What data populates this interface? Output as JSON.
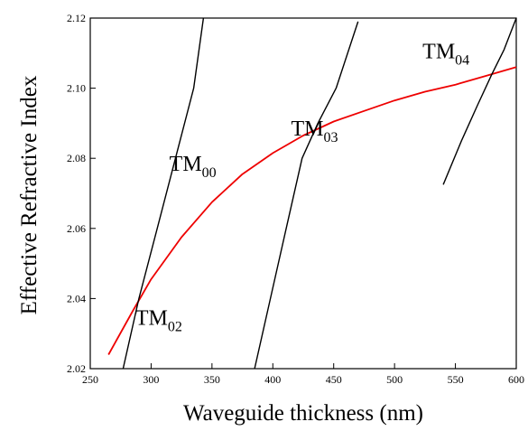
{
  "chart_data": {
    "type": "line",
    "xlabel": "Waveguide thickness (nm)",
    "ylabel": "Effective Refractive Index",
    "xlim": [
      250,
      600
    ],
    "ylim": [
      2.02,
      2.12
    ],
    "xticks": [
      "250",
      "300",
      "350",
      "400",
      "450",
      "500",
      "550",
      "600"
    ],
    "yticks": [
      "2.02",
      "2.04",
      "2.06",
      "2.08",
      "2.10",
      "2.12"
    ],
    "grid": false,
    "series": [
      {
        "color": "#ee0000",
        "x": [
          265,
          285,
          300,
          325,
          350,
          375,
          400,
          425,
          450,
          475,
          500,
          525,
          550,
          575,
          600
        ],
        "y": [
          2.024,
          2.0365,
          2.0455,
          2.0575,
          2.0675,
          2.0755,
          2.0815,
          2.0865,
          2.0905,
          2.0935,
          2.0965,
          2.099,
          2.101,
          2.1035,
          2.106
        ]
      },
      {
        "color": "#000000",
        "x": [
          277,
          290,
          305,
          320,
          335,
          343
        ],
        "y": [
          2.02,
          2.04,
          2.06,
          2.08,
          2.1,
          2.12
        ]
      },
      {
        "color": "#000000",
        "x": [
          385,
          398,
          411,
          424,
          437,
          452,
          470
        ],
        "y": [
          2.02,
          2.04,
          2.06,
          2.08,
          2.09,
          2.1,
          2.119
        ]
      },
      {
        "color": "#000000",
        "x": [
          540,
          555,
          568,
          580,
          590,
          600
        ],
        "y": [
          2.0725,
          2.085,
          2.095,
          2.104,
          2.111,
          2.12
        ]
      }
    ],
    "annotations": [
      {
        "main": "TM",
        "sub": "00",
        "x": 315,
        "y": 2.0765
      },
      {
        "main": "TM",
        "sub": "02",
        "x": 287,
        "y": 2.0325
      },
      {
        "main": "TM",
        "sub": "03",
        "x": 415,
        "y": 2.0865
      },
      {
        "main": "TM",
        "sub": "04",
        "x": 523,
        "y": 2.1085
      }
    ]
  }
}
